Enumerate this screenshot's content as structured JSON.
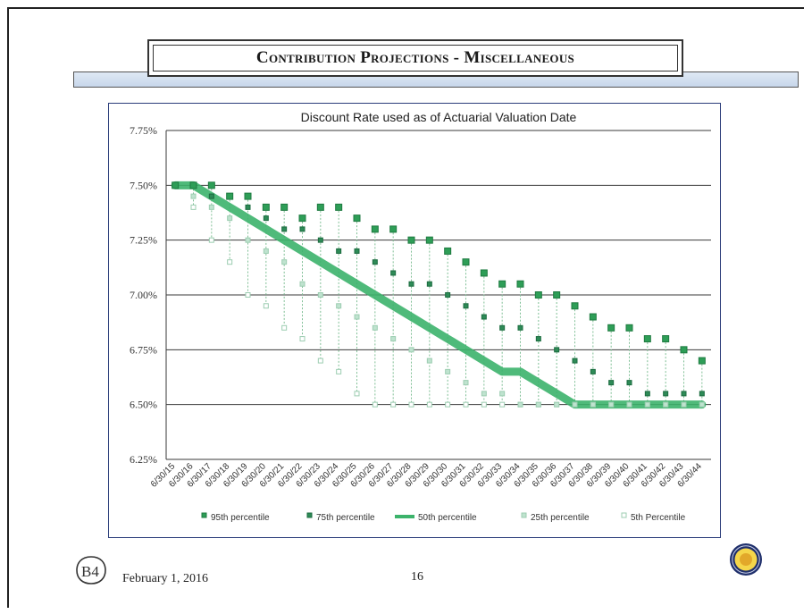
{
  "page": {
    "title": "Contribution Projections - Miscellaneous",
    "footer_date": "February 1, 2016",
    "page_number": "16",
    "logo_text": "B4"
  },
  "colors": {
    "p95": "#2e9e57",
    "p75": "#2e8b57",
    "p50": "#3cb36b",
    "p25": "#bfe3cf",
    "p5": "#ffffff",
    "grid": "#3a3a3a",
    "axis_box": "#2b3d7a"
  },
  "chart_data": {
    "type": "line",
    "title": "Discount Rate used as of Actuarial Valuation Date",
    "xlabel": "",
    "ylabel": "",
    "ylim": [
      6.25,
      7.75
    ],
    "y_ticks": [
      "6.25%",
      "6.50%",
      "6.75%",
      "7.00%",
      "7.25%",
      "7.50%",
      "7.75%"
    ],
    "y_tick_values": [
      6.25,
      6.5,
      6.75,
      7.0,
      7.25,
      7.5,
      7.75
    ],
    "grid": true,
    "legend_position": "bottom",
    "categories": [
      "6/30/15",
      "6/30/16",
      "6/30/17",
      "6/30/18",
      "6/30/19",
      "6/30/20",
      "6/30/21",
      "6/30/22",
      "6/30/23",
      "6/30/24",
      "6/30/25",
      "6/30/26",
      "6/30/27",
      "6/30/28",
      "6/30/29",
      "6/30/30",
      "6/30/31",
      "6/30/32",
      "6/30/33",
      "6/30/34",
      "6/30/35",
      "6/30/36",
      "6/30/37",
      "6/30/38",
      "6/30/39",
      "6/30/40",
      "6/30/41",
      "6/30/42",
      "6/30/43",
      "6/30/44"
    ],
    "series": [
      {
        "name": "95th percentile",
        "key": "p95",
        "style": "square-large",
        "values": [
          7.5,
          7.5,
          7.5,
          7.45,
          7.45,
          7.4,
          7.4,
          7.35,
          7.4,
          7.4,
          7.35,
          7.3,
          7.3,
          7.25,
          7.25,
          7.2,
          7.15,
          7.1,
          7.05,
          7.05,
          7.0,
          7.0,
          6.95,
          6.9,
          6.85,
          6.85,
          6.8,
          6.8,
          6.75,
          6.7
        ]
      },
      {
        "name": "75th percentile",
        "key": "p75",
        "style": "square-small",
        "values": [
          7.5,
          7.5,
          7.45,
          7.45,
          7.4,
          7.35,
          7.3,
          7.3,
          7.25,
          7.2,
          7.2,
          7.15,
          7.1,
          7.05,
          7.05,
          7.0,
          6.95,
          6.9,
          6.85,
          6.85,
          6.8,
          6.75,
          6.7,
          6.65,
          6.6,
          6.6,
          6.55,
          6.55,
          6.55,
          6.55
        ]
      },
      {
        "name": "50th percentile",
        "key": "p50",
        "style": "line",
        "values": [
          7.5,
          7.5,
          7.45,
          7.4,
          7.35,
          7.3,
          7.25,
          7.2,
          7.15,
          7.1,
          7.05,
          7.0,
          6.95,
          6.9,
          6.85,
          6.8,
          6.75,
          6.7,
          6.65,
          6.65,
          6.6,
          6.55,
          6.5,
          6.5,
          6.5,
          6.5,
          6.5,
          6.5,
          6.5,
          6.5
        ]
      },
      {
        "name": "25th percentile",
        "key": "p25",
        "style": "square-pale",
        "values": [
          7.5,
          7.45,
          7.4,
          7.35,
          7.25,
          7.2,
          7.15,
          7.05,
          7.0,
          6.95,
          6.9,
          6.85,
          6.8,
          6.75,
          6.7,
          6.65,
          6.6,
          6.55,
          6.55,
          6.5,
          6.5,
          6.5,
          6.5,
          6.5,
          6.5,
          6.5,
          6.5,
          6.5,
          6.5,
          6.5
        ]
      },
      {
        "name": "5th Percentile",
        "key": "p5",
        "style": "square-hollow",
        "values": [
          7.5,
          7.4,
          7.25,
          7.15,
          7.0,
          6.95,
          6.85,
          6.8,
          6.7,
          6.65,
          6.55,
          6.5,
          6.5,
          6.5,
          6.5,
          6.5,
          6.5,
          6.5,
          6.5,
          6.5,
          6.5,
          6.5,
          6.5,
          6.5,
          6.5,
          6.5,
          6.5,
          6.5,
          6.5,
          6.5
        ]
      }
    ]
  }
}
